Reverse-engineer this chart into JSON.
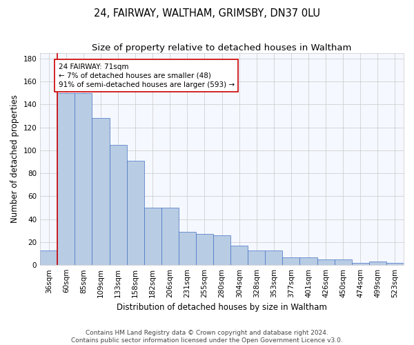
{
  "title": "24, FAIRWAY, WALTHAM, GRIMSBY, DN37 0LU",
  "subtitle": "Size of property relative to detached houses in Waltham",
  "xlabel": "Distribution of detached houses by size in Waltham",
  "ylabel": "Number of detached properties",
  "footer_line1": "Contains HM Land Registry data © Crown copyright and database right 2024.",
  "footer_line2": "Contains public sector information licensed under the Open Government Licence v3.0.",
  "categories": [
    "36sqm",
    "60sqm",
    "85sqm",
    "109sqm",
    "133sqm",
    "158sqm",
    "182sqm",
    "206sqm",
    "231sqm",
    "255sqm",
    "280sqm",
    "304sqm",
    "328sqm",
    "353sqm",
    "377sqm",
    "401sqm",
    "426sqm",
    "450sqm",
    "474sqm",
    "499sqm",
    "523sqm"
  ],
  "values": [
    13,
    150,
    150,
    128,
    105,
    91,
    50,
    50,
    29,
    27,
    26,
    17,
    13,
    13,
    7,
    7,
    5,
    5,
    2,
    3,
    2
  ],
  "bar_color": "#b8cce4",
  "bar_edge_color": "#4472c4",
  "background_color": "#ffffff",
  "plot_bg_color": "#f5f8ff",
  "grid_color": "#c8c8c8",
  "annotation_text_line1": "24 FAIRWAY: 71sqm",
  "annotation_text_line2": "← 7% of detached houses are smaller (48)",
  "annotation_text_line3": "91% of semi-detached houses are larger (593) →",
  "annotation_box_color": "#ffffff",
  "annotation_box_edge_color": "#cc0000",
  "vline_color": "#cc0000",
  "ylim": [
    0,
    185
  ],
  "yticks": [
    0,
    20,
    40,
    60,
    80,
    100,
    120,
    140,
    160,
    180
  ],
  "title_fontsize": 10.5,
  "subtitle_fontsize": 9.5,
  "axis_label_fontsize": 8.5,
  "tick_fontsize": 7.5,
  "annotation_fontsize": 7.5,
  "footer_fontsize": 6.5
}
